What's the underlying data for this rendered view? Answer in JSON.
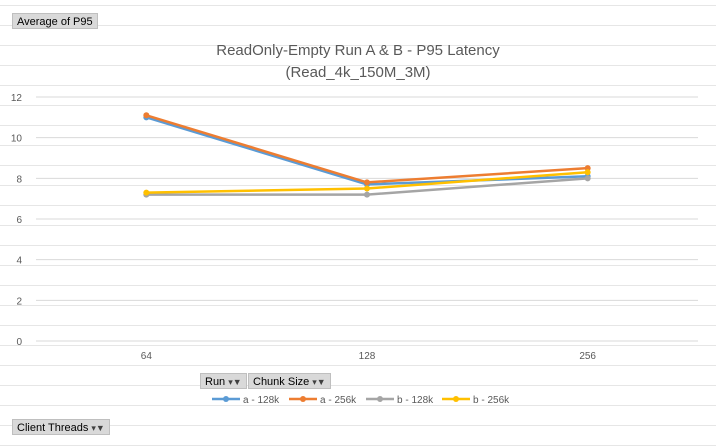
{
  "pivot": {
    "value_field": "Average of P95",
    "legend_fields": [
      {
        "label": "Run",
        "icon": "filter-dropdown-icon"
      },
      {
        "label": "Chunk Size",
        "icon": "filter-dropdown-icon"
      }
    ],
    "axis_field": {
      "label": "Client Threads",
      "icon": "filter-dropdown-icon"
    }
  },
  "chart_data": {
    "type": "line",
    "title": "ReadOnly-Empty Run A & B - P95 Latency",
    "subtitle": "(Read_4k_150M_3M)",
    "xlabel": "",
    "ylabel": "",
    "categories": [
      "64",
      "128",
      "256"
    ],
    "ylim": [
      0,
      12
    ],
    "yticks": [
      "0",
      "2",
      "4",
      "6",
      "8",
      "10",
      "12"
    ],
    "grid": true,
    "legend_position": "bottom",
    "series": [
      {
        "name": "a - 128k",
        "color": "#5b9bd5",
        "values": [
          11.0,
          7.7,
          8.1
        ]
      },
      {
        "name": "a - 256k",
        "color": "#ed7d31",
        "values": [
          11.1,
          7.8,
          8.5
        ]
      },
      {
        "name": "b - 128k",
        "color": "#a5a5a5",
        "values": [
          7.2,
          7.2,
          8.0
        ]
      },
      {
        "name": "b - 256k",
        "color": "#ffc000",
        "values": [
          7.3,
          7.5,
          8.3
        ]
      }
    ]
  }
}
